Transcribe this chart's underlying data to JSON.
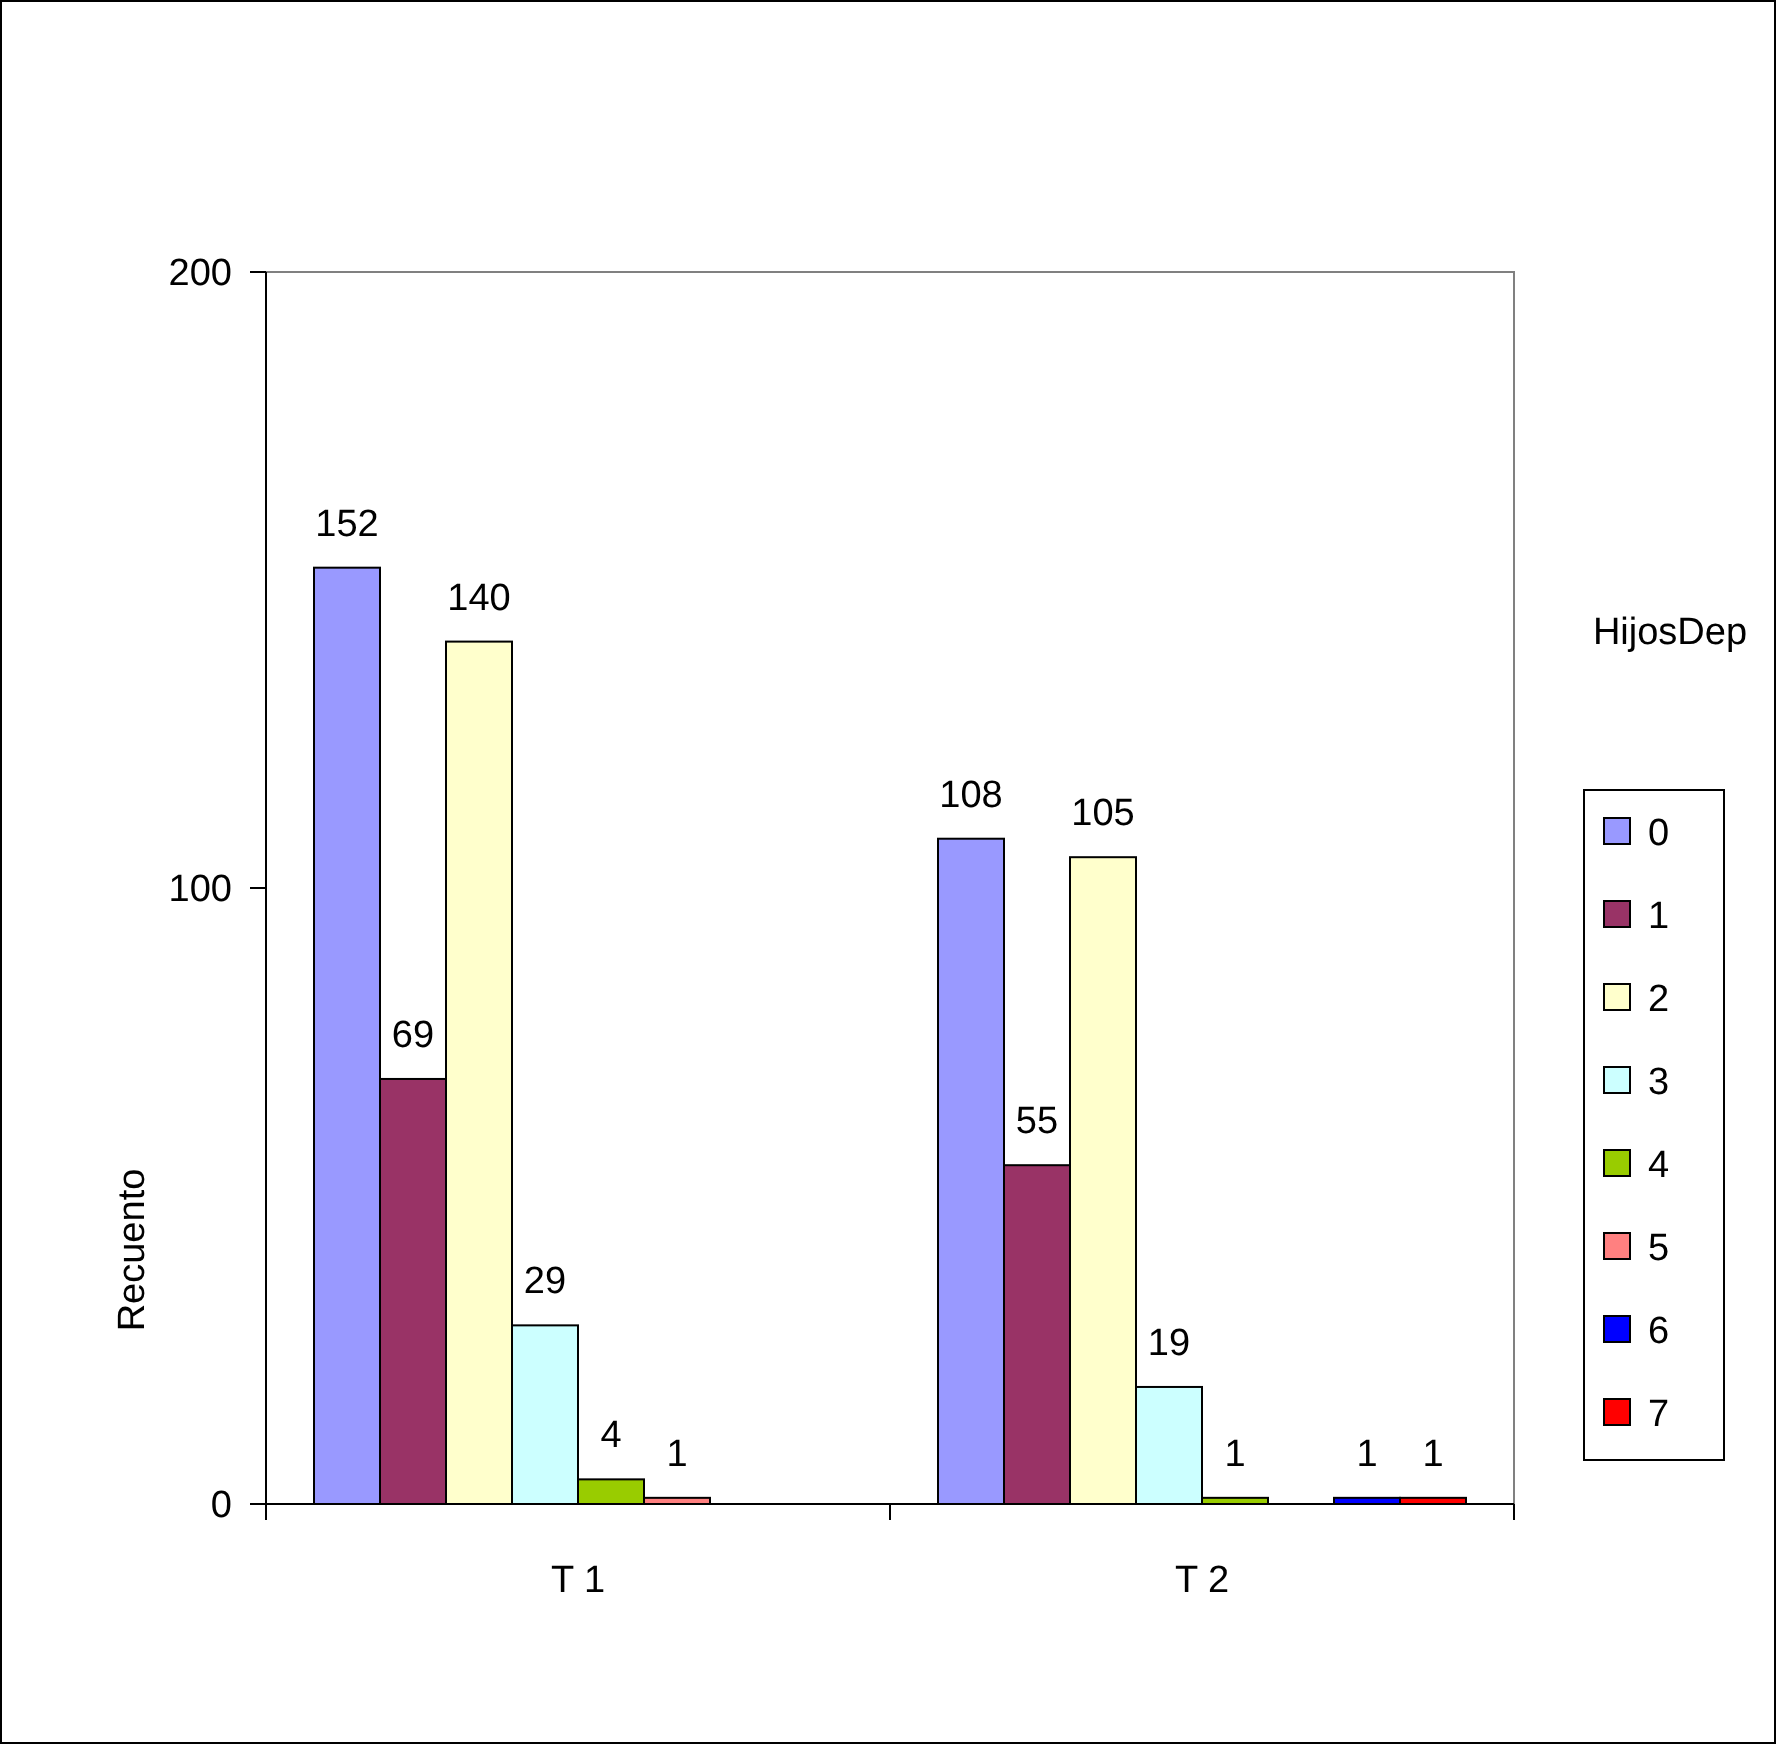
{
  "chart_data": {
    "type": "bar",
    "ylabel": "Recuento",
    "legend_title": "HijosDep",
    "categories": [
      "T 1",
      "T 2"
    ],
    "ylim": [
      0,
      200
    ],
    "yticks": [
      0,
      100,
      200
    ],
    "grid": false,
    "legend": "right",
    "data_labels": true,
    "series": [
      {
        "name": "0",
        "color": "#9999ff",
        "values": [
          152,
          108
        ]
      },
      {
        "name": "1",
        "color": "#993366",
        "values": [
          69,
          55
        ]
      },
      {
        "name": "2",
        "color": "#ffffcc",
        "values": [
          140,
          105
        ]
      },
      {
        "name": "3",
        "color": "#ccffff",
        "values": [
          29,
          19
        ]
      },
      {
        "name": "4",
        "color": "#99cc00",
        "values": [
          4,
          1
        ]
      },
      {
        "name": "5",
        "color": "#ff8080",
        "values": [
          1,
          null
        ]
      },
      {
        "name": "6",
        "color": "#0000ff",
        "values": [
          null,
          1
        ]
      },
      {
        "name": "7",
        "color": "#ff0000",
        "values": [
          null,
          1
        ]
      }
    ]
  }
}
